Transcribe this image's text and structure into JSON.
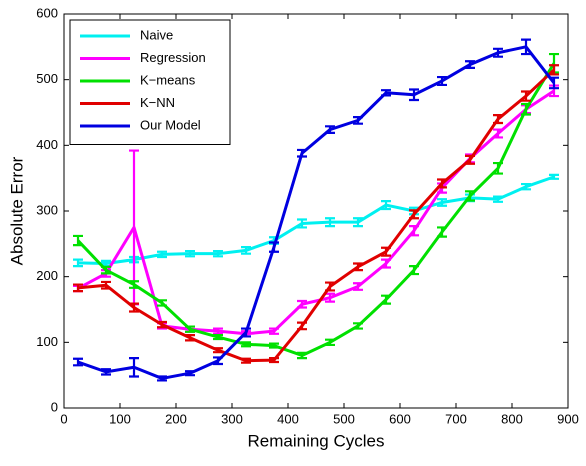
{
  "chart_data": {
    "type": "line",
    "x_label": "Remaining Cycles",
    "y_label": "Absolute Error",
    "xlim": [
      0,
      900
    ],
    "ylim": [
      0,
      600
    ],
    "xticks": [
      0,
      100,
      200,
      300,
      400,
      500,
      600,
      700,
      800,
      900
    ],
    "yticks": [
      0,
      100,
      200,
      300,
      400,
      500,
      600
    ],
    "legend": "upper-left",
    "x": [
      25,
      75,
      125,
      175,
      225,
      275,
      325,
      375,
      425,
      475,
      525,
      575,
      625,
      675,
      725,
      775,
      825,
      875
    ],
    "series": [
      {
        "name": "Naive",
        "color": "#00f0f0",
        "values": [
          221,
          220,
          226,
          234,
          235,
          235,
          240,
          255,
          281,
          283,
          283,
          309,
          300,
          313,
          320,
          318,
          337,
          352
        ],
        "errors": [
          5,
          4,
          4,
          4,
          4,
          4,
          5,
          5,
          6,
          6,
          6,
          6,
          5,
          5,
          5,
          4,
          4,
          3
        ]
      },
      {
        "name": "Regression",
        "color": "#ff00ff",
        "values": [
          182,
          205,
          275,
          125,
          120,
          117,
          113,
          117,
          158,
          168,
          185,
          220,
          270,
          335,
          380,
          418,
          455,
          483
        ],
        "errors": [
          4,
          5,
          117,
          4,
          4,
          4,
          4,
          4,
          5,
          6,
          5,
          6,
          7,
          7,
          6,
          6,
          6,
          8
        ]
      },
      {
        "name": "K−means",
        "color": "#00e000",
        "values": [
          255,
          210,
          188,
          160,
          120,
          108,
          97,
          95,
          80,
          100,
          125,
          165,
          210,
          268,
          323,
          365,
          455,
          525
        ],
        "errors": [
          7,
          5,
          5,
          4,
          4,
          3,
          3,
          3,
          4,
          4,
          4,
          6,
          6,
          7,
          7,
          8,
          8,
          14
        ]
      },
      {
        "name": "K−NN",
        "color": "#e00000",
        "values": [
          183,
          187,
          153,
          127,
          107,
          88,
          72,
          73,
          125,
          185,
          215,
          238,
          295,
          342,
          378,
          440,
          475,
          515
        ],
        "errors": [
          5,
          5,
          6,
          4,
          4,
          3,
          3,
          3,
          5,
          6,
          5,
          6,
          6,
          6,
          6,
          6,
          7,
          7
        ]
      },
      {
        "name": "Our Model",
        "color": "#0000e0",
        "values": [
          70,
          55,
          62,
          45,
          53,
          72,
          115,
          245,
          388,
          424,
          438,
          480,
          477,
          498,
          523,
          541,
          550,
          495
        ],
        "errors": [
          5,
          4,
          14,
          3,
          3,
          5,
          6,
          7,
          5,
          5,
          5,
          4,
          8,
          6,
          5,
          6,
          11,
          8
        ]
      }
    ]
  }
}
